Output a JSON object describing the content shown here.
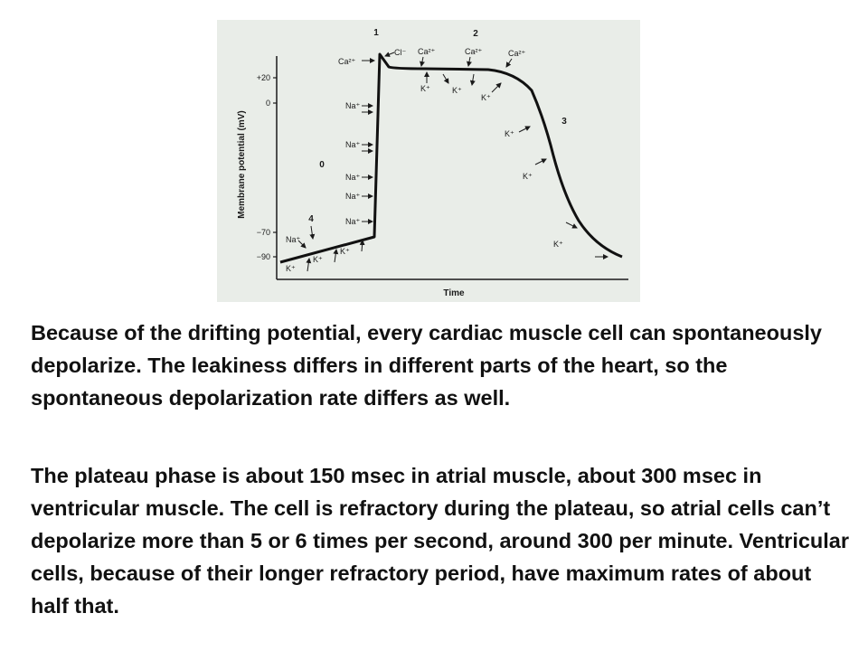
{
  "figure": {
    "y_axis_label": "Membrane potential (mV)",
    "x_axis_label": "Time",
    "y_ticks": [
      "+20",
      "0",
      "−70",
      "−90"
    ],
    "phase_labels": [
      "0",
      "1",
      "2",
      "3",
      "4"
    ],
    "ions": {
      "na": "Na⁺",
      "k": "K⁺",
      "ca": "Ca²⁺",
      "cl": "Cl⁻"
    }
  },
  "text": {
    "paragraph_1": "Because of the drifting potential, every cardiac muscle cell can spontaneously depolarize.  The leakiness differs in different parts of the heart, so the spontaneous depolarization rate differs as well.",
    "paragraph_2": "The plateau phase is about 150 msec in atrial muscle, about 300 msec in ventricular muscle.  The cell is refractory during the plateau, so atrial cells can’t depolarize more than 5 or 6 times per second, around 300 per minute.  Ventricular cells, because of their longer refractory period, have maximum rates of about half that."
  }
}
